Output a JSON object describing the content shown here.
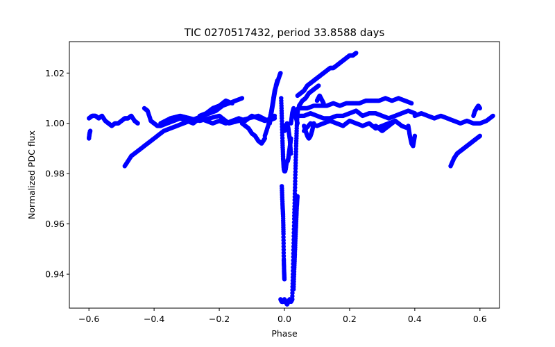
{
  "chart_data": {
    "type": "scatter",
    "title": "TIC 0270517432, period 33.8588 days",
    "xlabel": "Phase",
    "ylabel": "Normalized PDC flux",
    "xlim": [
      -0.66,
      0.66
    ],
    "ylim": [
      0.9265,
      1.0325
    ],
    "xticks": [
      -0.6,
      -0.4,
      -0.2,
      0.0,
      0.2,
      0.4,
      0.6
    ],
    "xtick_labels": [
      "−0.6",
      "−0.4",
      "−0.2",
      "0.0",
      "0.2",
      "0.4",
      "0.6"
    ],
    "yticks": [
      0.94,
      0.96,
      0.98,
      1.0,
      1.02
    ],
    "ytick_labels": [
      "0.94",
      "0.96",
      "0.98",
      "1.00",
      "1.02"
    ],
    "grid": false,
    "marker_color": "#0000ff",
    "segments": [
      {
        "x": [
          -0.6,
          -0.59,
          -0.58,
          -0.57,
          -0.56,
          -0.55,
          -0.54,
          -0.53,
          -0.52,
          -0.51,
          -0.5,
          -0.49,
          -0.48,
          -0.47,
          -0.46,
          -0.45
        ],
        "y": [
          1.002,
          1.003,
          1.003,
          1.002,
          1.003,
          1.001,
          1.0,
          0.999,
          1.0,
          1.0,
          1.001,
          1.002,
          1.002,
          1.003,
          1.001,
          1.0
        ]
      },
      {
        "x": [
          -0.6,
          -0.598,
          -0.596
        ],
        "y": [
          0.994,
          0.996,
          0.997
        ]
      },
      {
        "x": [
          -0.49,
          -0.47,
          -0.45,
          -0.43,
          -0.41,
          -0.39,
          -0.37,
          -0.35,
          -0.33,
          -0.31,
          -0.29,
          -0.27,
          -0.25,
          -0.23,
          -0.21,
          -0.19,
          -0.17,
          -0.15,
          -0.13
        ],
        "y": [
          0.983,
          0.987,
          0.989,
          0.991,
          0.993,
          0.995,
          0.997,
          0.998,
          0.999,
          1.0,
          1.001,
          1.002,
          1.003,
          1.004,
          1.005,
          1.007,
          1.008,
          1.009,
          1.01
        ]
      },
      {
        "x": [
          -0.43,
          -0.42,
          -0.41,
          -0.4,
          -0.39,
          -0.38,
          -0.36,
          -0.34,
          -0.32,
          -0.3,
          -0.28,
          -0.26,
          -0.24,
          -0.22,
          -0.2,
          -0.18,
          -0.16,
          -0.14,
          -0.12,
          -0.1,
          -0.08,
          -0.06,
          -0.04,
          -0.03
        ],
        "y": [
          1.006,
          1.005,
          1.001,
          1.0,
          0.999,
          0.999,
          1.0,
          1.001,
          1.002,
          1.001,
          1.0,
          1.002,
          1.001,
          1.0,
          1.001,
          1.0,
          1.001,
          1.002,
          1.001,
          1.003,
          1.002,
          1.001,
          1.002,
          1.003
        ]
      },
      {
        "x": [
          -0.38,
          -0.35,
          -0.32,
          -0.29,
          -0.26,
          -0.23,
          -0.2,
          -0.17,
          -0.14,
          -0.11,
          -0.08,
          -0.05,
          -0.03
        ],
        "y": [
          1.0,
          1.002,
          1.003,
          1.002,
          1.001,
          1.002,
          1.003,
          1.0,
          1.001,
          1.002,
          1.003,
          1.001,
          1.002
        ]
      },
      {
        "x": [
          -0.26,
          -0.24,
          -0.22,
          -0.2,
          -0.18,
          -0.16
        ],
        "y": [
          1.003,
          1.004,
          1.006,
          1.007,
          1.009,
          1.008
        ]
      },
      {
        "x": [
          -0.13,
          -0.12,
          -0.11,
          -0.1,
          -0.09,
          -0.08,
          -0.07,
          -0.06
        ],
        "y": [
          1.0,
          0.999,
          0.998,
          0.996,
          0.995,
          0.993,
          0.992,
          0.994
        ]
      },
      {
        "x": [
          -0.06,
          -0.05,
          -0.04,
          -0.035,
          -0.03,
          -0.025,
          -0.02,
          -0.015,
          -0.012
        ],
        "y": [
          0.995,
          0.999,
          1.005,
          1.009,
          1.013,
          1.015,
          1.017,
          1.019,
          1.02
        ]
      },
      {
        "x": [
          -0.045,
          -0.04,
          -0.035,
          -0.03,
          -0.026,
          -0.022
        ],
        "y": [
          1.0,
          1.004,
          1.008,
          1.012,
          1.015,
          1.017
        ]
      },
      {
        "x": [
          -0.01,
          -0.008,
          -0.006,
          -0.004,
          -0.002,
          0.0,
          0.002,
          0.004,
          0.006,
          0.008,
          0.01,
          0.012,
          0.014,
          0.016,
          0.018,
          0.02
        ],
        "y": [
          1.01,
          1.002,
          0.993,
          0.986,
          0.982,
          0.981,
          0.981,
          0.982,
          0.984,
          0.985,
          0.985,
          0.986,
          0.988,
          0.99,
          0.992,
          0.994
        ]
      },
      {
        "x": [
          -0.008,
          -0.006,
          -0.004,
          -0.003,
          -0.002,
          -0.001,
          0.0
        ],
        "y": [
          0.975,
          0.968,
          0.963,
          0.956,
          0.946,
          0.941,
          0.938
        ]
      },
      {
        "x": [
          -0.012,
          -0.008,
          -0.004,
          0.0,
          0.004,
          0.008,
          0.012,
          0.016,
          0.02,
          0.024
        ],
        "y": [
          0.93,
          0.929,
          0.929,
          0.93,
          0.929,
          0.928,
          0.929,
          0.93,
          0.929,
          0.93
        ]
      },
      {
        "x": [
          0.0,
          0.004,
          0.008,
          0.012,
          0.016,
          0.02
        ],
        "y": [
          0.997,
          0.999,
          1.0,
          0.998,
          0.994,
          0.988
        ]
      },
      {
        "x": [
          0.024,
          0.026,
          0.028,
          0.03,
          0.032,
          0.034,
          0.036,
          0.038,
          0.04,
          0.042
        ],
        "y": [
          0.93,
          0.94,
          0.951,
          0.962,
          0.972,
          0.982,
          0.991,
          0.999,
          1.004,
          1.006
        ]
      },
      {
        "x": [
          0.028,
          0.03,
          0.032,
          0.034,
          0.036,
          0.038,
          0.04
        ],
        "y": [
          0.934,
          0.942,
          0.948,
          0.955,
          0.961,
          0.967,
          0.971
        ]
      },
      {
        "x": [
          0.02,
          0.024,
          0.028,
          0.032,
          0.036,
          0.04
        ],
        "y": [
          1.0,
          1.004,
          1.006,
          1.004,
          1.002,
          1.0
        ]
      },
      {
        "x": [
          0.04,
          0.05,
          0.06,
          0.07,
          0.08,
          0.09,
          0.1,
          0.11,
          0.12,
          0.13,
          0.14,
          0.15,
          0.16,
          0.17,
          0.18,
          0.19,
          0.2,
          0.21,
          0.22
        ],
        "y": [
          1.011,
          1.012,
          1.013,
          1.015,
          1.016,
          1.017,
          1.018,
          1.019,
          1.02,
          1.021,
          1.022,
          1.022,
          1.023,
          1.024,
          1.025,
          1.026,
          1.027,
          1.027,
          1.028
        ]
      },
      {
        "x": [
          0.045,
          0.055,
          0.065,
          0.075,
          0.085,
          0.095,
          0.105
        ],
        "y": [
          1.007,
          1.009,
          1.01,
          1.012,
          1.013,
          1.014,
          1.015
        ]
      },
      {
        "x": [
          0.05,
          0.07,
          0.09,
          0.11,
          0.13,
          0.15,
          0.17,
          0.19,
          0.21,
          0.23,
          0.25,
          0.27,
          0.29,
          0.31,
          0.33,
          0.35,
          0.37,
          0.39
        ],
        "y": [
          1.006,
          1.006,
          1.007,
          1.007,
          1.007,
          1.008,
          1.007,
          1.008,
          1.008,
          1.008,
          1.009,
          1.009,
          1.009,
          1.01,
          1.009,
          1.01,
          1.009,
          1.008
        ]
      },
      {
        "x": [
          0.04,
          0.06,
          0.08,
          0.1,
          0.12,
          0.14,
          0.16,
          0.18,
          0.2,
          0.22,
          0.24,
          0.26,
          0.28,
          0.3,
          0.32,
          0.34,
          0.36,
          0.38,
          0.4
        ],
        "y": [
          1.003,
          1.003,
          1.004,
          1.003,
          1.002,
          1.002,
          1.003,
          1.003,
          1.004,
          1.005,
          1.003,
          1.004,
          1.004,
          1.003,
          1.002,
          1.003,
          1.004,
          1.005,
          1.004
        ]
      },
      {
        "x": [
          0.06,
          0.08,
          0.1,
          0.12,
          0.14,
          0.16,
          0.18,
          0.2,
          0.22,
          0.24,
          0.26,
          0.28,
          0.3,
          0.32,
          0.34,
          0.36,
          0.38
        ],
        "y": [
          0.997,
          1.0,
          0.999,
          1.0,
          1.001,
          1.0,
          0.999,
          1.001,
          1.0,
          0.999,
          1.0,
          0.998,
          0.999,
          1.0,
          1.001,
          0.999,
          0.998
        ]
      },
      {
        "x": [
          0.06,
          0.065,
          0.07,
          0.075,
          0.08,
          0.085,
          0.09
        ],
        "y": [
          0.999,
          0.997,
          0.995,
          0.994,
          0.995,
          0.997,
          1.0
        ]
      },
      {
        "x": [
          0.1,
          0.104,
          0.108,
          0.112,
          0.116,
          0.12
        ],
        "y": [
          1.009,
          1.01,
          1.011,
          1.01,
          1.009,
          1.008
        ]
      },
      {
        "x": [
          0.28,
          0.29,
          0.3,
          0.31,
          0.32,
          0.33,
          0.34
        ],
        "y": [
          0.999,
          0.998,
          0.997,
          0.998,
          0.999,
          1.0,
          1.001
        ]
      },
      {
        "x": [
          0.38,
          0.385,
          0.39,
          0.395,
          0.4
        ],
        "y": [
          0.999,
          0.995,
          0.992,
          0.991,
          0.995
        ]
      },
      {
        "x": [
          0.4,
          0.42,
          0.44,
          0.46,
          0.48,
          0.5,
          0.52,
          0.54,
          0.56,
          0.58,
          0.6,
          0.62,
          0.64
        ],
        "y": [
          1.003,
          1.004,
          1.003,
          1.002,
          1.003,
          1.002,
          1.001,
          1.0,
          1.001,
          1.0,
          1.0,
          1.001,
          1.003
        ]
      },
      {
        "x": [
          0.51,
          0.52,
          0.53,
          0.54,
          0.55,
          0.56,
          0.57,
          0.58,
          0.59,
          0.6
        ],
        "y": [
          0.983,
          0.986,
          0.988,
          0.989,
          0.99,
          0.991,
          0.992,
          0.993,
          0.994,
          0.995
        ]
      },
      {
        "x": [
          0.58,
          0.585,
          0.59,
          0.595,
          0.6
        ],
        "y": [
          1.003,
          1.005,
          1.006,
          1.007,
          1.006
        ]
      }
    ]
  }
}
